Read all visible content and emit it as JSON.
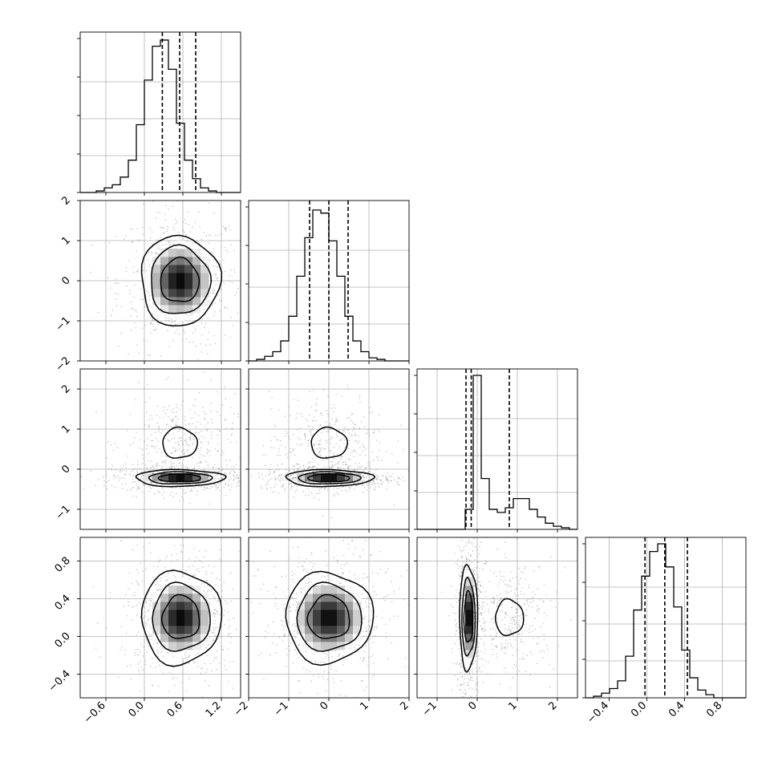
{
  "chart_data": {
    "type": "corner",
    "variables": 4,
    "grid": true,
    "quantile_lines": [
      [
        0.28,
        0.55,
        0.8
      ],
      [
        -0.48,
        0.0,
        0.48
      ],
      [
        -0.28,
        -0.15,
        0.8
      ],
      [
        -0.02,
        0.19,
        0.43
      ]
    ],
    "axes": [
      {
        "lim": [
          -1.0,
          1.5
        ],
        "ticks": [
          -0.6,
          0.0,
          0.6,
          1.2
        ],
        "tick_labels": [
          "−0.6",
          "0.0",
          "0.6",
          "1.2"
        ]
      },
      {
        "lim": [
          -2.0,
          2.0
        ],
        "ticks": [
          -2,
          -1,
          0,
          1,
          2
        ],
        "tick_labels": [
          "−2",
          "−1",
          "0",
          "1",
          "2"
        ]
      },
      {
        "lim": [
          -1.5,
          2.5
        ],
        "ticks": [
          -1,
          0,
          1,
          2
        ],
        "tick_labels": [
          "−1",
          "0",
          "1",
          "2"
        ]
      },
      {
        "lim": [
          -0.65,
          1.05
        ],
        "ticks": [
          -0.4,
          0.0,
          0.4,
          0.8
        ],
        "tick_labels": [
          "−0.4",
          "0.0",
          "0.4",
          "0.8"
        ]
      }
    ],
    "histograms": [
      {
        "bin_start": -1.0,
        "bin_width": 0.125,
        "max": 1.0,
        "values": [
          0.0,
          0.0,
          0.01,
          0.03,
          0.05,
          0.1,
          0.21,
          0.44,
          0.73,
          0.95,
          0.99,
          0.8,
          0.45,
          0.21,
          0.09,
          0.03,
          0.01,
          0.0,
          0.0,
          0.0
        ]
      },
      {
        "bin_start": -2.0,
        "bin_width": 0.2,
        "max": 1.0,
        "values": [
          0.0,
          0.01,
          0.03,
          0.06,
          0.13,
          0.29,
          0.55,
          0.8,
          0.98,
          0.96,
          0.78,
          0.55,
          0.29,
          0.13,
          0.06,
          0.02,
          0.01,
          0.0,
          0.0,
          0.0
        ]
      },
      {
        "bin_start": -1.5,
        "bin_width": 0.2,
        "max": 1.0,
        "values": [
          0.0,
          0.0,
          0.0,
          0.0,
          0.0,
          0.0,
          0.13,
          1.0,
          0.33,
          0.13,
          0.11,
          0.14,
          0.2,
          0.2,
          0.13,
          0.08,
          0.04,
          0.02,
          0.01,
          0.0
        ]
      },
      {
        "bin_start": -0.65,
        "bin_width": 0.085,
        "max": 1.0,
        "values": [
          0.0,
          0.01,
          0.03,
          0.06,
          0.11,
          0.27,
          0.57,
          0.79,
          0.95,
          1.0,
          0.85,
          0.59,
          0.31,
          0.13,
          0.05,
          0.02,
          0.0,
          0.0,
          0.0,
          0.0
        ]
      }
    ],
    "pairs": [
      {
        "row": 1,
        "col": 0,
        "blobs": [
          {
            "cx": 0.55,
            "cy": 0.0,
            "sx": 0.3,
            "sy": 0.55,
            "levels": [
              1.0,
              1.55,
              2.05
            ],
            "dark": 1.0
          }
        ]
      },
      {
        "row": 2,
        "col": 0,
        "blobs": [
          {
            "cx": 0.55,
            "cy": -0.22,
            "sx": 0.33,
            "sy": 0.1,
            "levels": [
              1.0,
              1.5,
              2.1
            ],
            "dark": 1.0
          },
          {
            "cx": 0.55,
            "cy": 0.65,
            "sx": 0.27,
            "sy": 0.38,
            "levels": [
              1.0
            ],
            "dark": 0.18
          }
        ]
      },
      {
        "row": 2,
        "col": 1,
        "blobs": [
          {
            "cx": 0.0,
            "cy": -0.22,
            "sx": 0.52,
            "sy": 0.1,
            "levels": [
              1.0,
              1.5,
              2.1
            ],
            "dark": 1.0
          },
          {
            "cx": 0.0,
            "cy": 0.65,
            "sx": 0.45,
            "sy": 0.38,
            "levels": [
              1.0
            ],
            "dark": 0.18
          }
        ]
      },
      {
        "row": 3,
        "col": 0,
        "blobs": [
          {
            "cx": 0.57,
            "cy": 0.2,
            "sx": 0.29,
            "sy": 0.23,
            "levels": [
              1.0,
              1.55,
              2.15
            ],
            "dark": 1.0
          }
        ]
      },
      {
        "row": 3,
        "col": 1,
        "blobs": [
          {
            "cx": 0.0,
            "cy": 0.2,
            "sx": 0.52,
            "sy": 0.23,
            "levels": [
              1.0,
              1.55,
              2.1
            ],
            "dark": 1.0
          }
        ]
      },
      {
        "row": 3,
        "col": 2,
        "blobs": [
          {
            "cx": -0.22,
            "cy": 0.2,
            "sx": 0.11,
            "sy": 0.27,
            "levels": [
              1.0,
              1.5,
              2.05
            ],
            "dark": 1.0
          },
          {
            "cx": 0.8,
            "cy": 0.2,
            "sx": 0.35,
            "sy": 0.19,
            "levels": [
              1.0
            ],
            "dark": 0.18
          }
        ]
      }
    ]
  }
}
